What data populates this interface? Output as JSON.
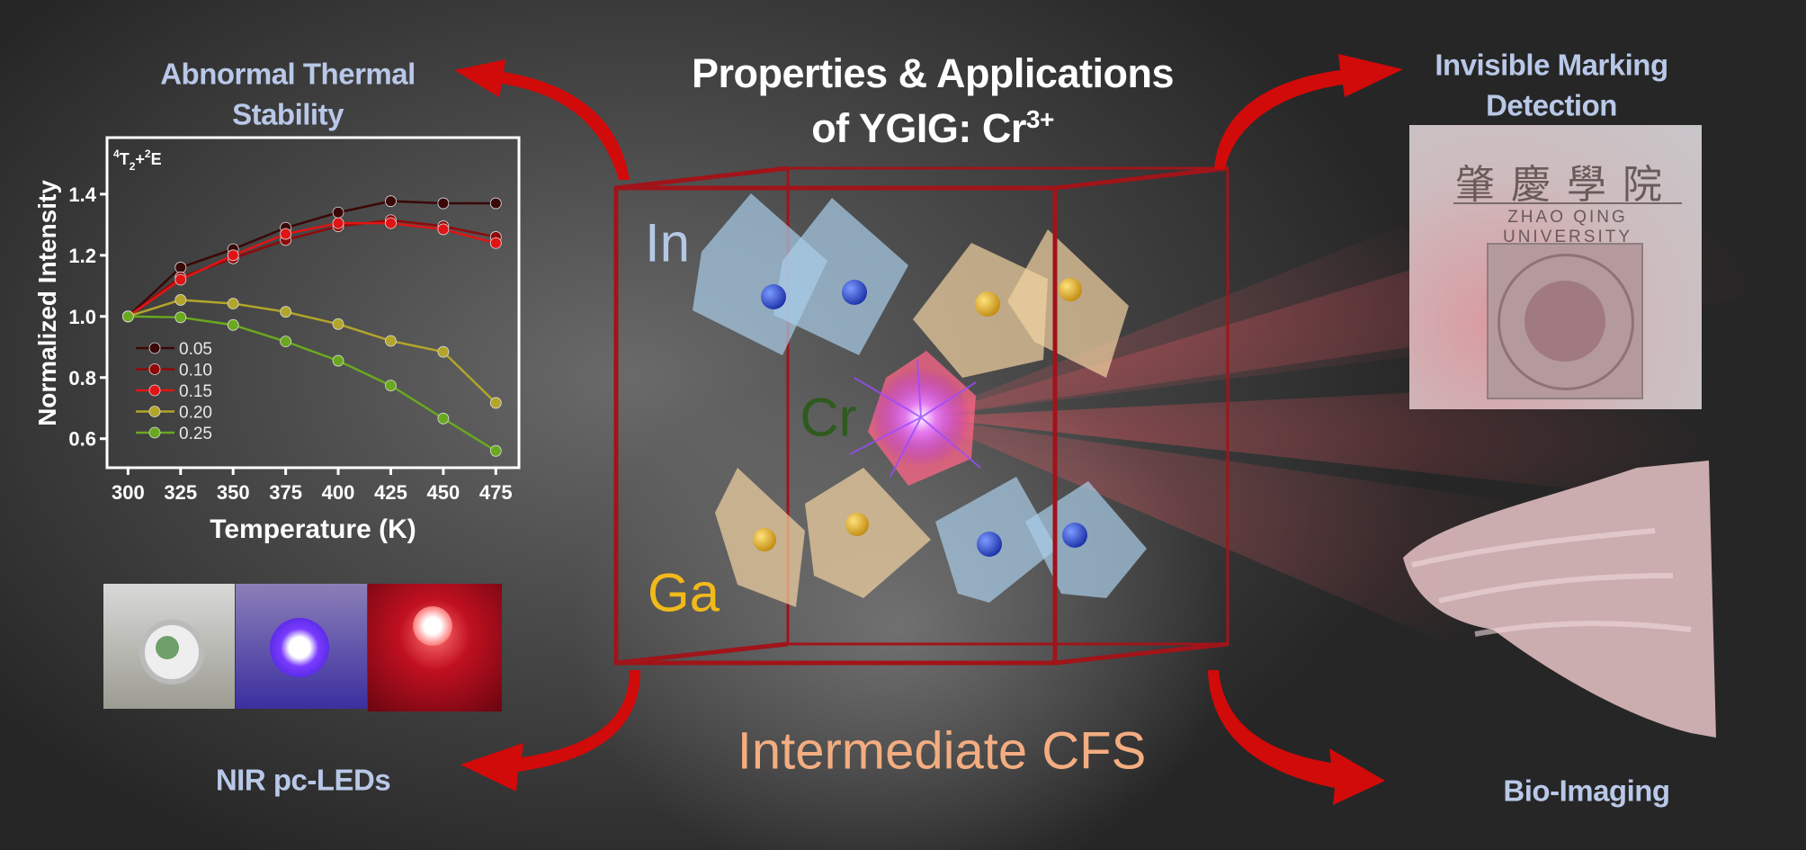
{
  "title": {
    "line1": "Properties & Applications",
    "line2_prefix": "of  YGIG: Cr",
    "line2_sup": "3+"
  },
  "labels": {
    "top_left": [
      "Abnormal Thermal",
      "Stability"
    ],
    "top_right": [
      "Invisible Marking",
      "Detection"
    ],
    "bottom_left": "NIR pc-LEDs",
    "bottom_right": "Bio-Imaging",
    "center_bottom": "Intermediate CFS"
  },
  "atoms": {
    "in": "In",
    "cr": "Cr",
    "ga": "Ga"
  },
  "marking_image": {
    "chinese_name": "肇慶學院",
    "english_name": "ZHAO QING UNIVERSITY"
  },
  "colors": {
    "arrow": "#d10a0a",
    "label": "#b9c8e8",
    "cfs": "#f3ad80",
    "cube": "#a0141a",
    "in_label": "#b4c8e6",
    "cr_label": "#2e5a1e",
    "ga_label": "#f2b91a"
  },
  "chart_data": {
    "type": "line",
    "annotation": "4T2+2E",
    "xlabel": "Temperature (K)",
    "ylabel": "Normalized Intensity",
    "x": [
      300,
      325,
      350,
      375,
      400,
      425,
      450,
      475
    ],
    "xticks": [
      "300",
      "325",
      "350",
      "375",
      "400",
      "425",
      "450",
      "475"
    ],
    "yticks": [
      "0.6",
      "0.8",
      "1.0",
      "1.2",
      "1.4"
    ],
    "xlim": [
      290,
      486
    ],
    "ylim": [
      0.505,
      1.585
    ],
    "grid": false,
    "legend_position": "left-middle",
    "series": [
      {
        "name": "0.05",
        "color": "#3a0808",
        "values": [
          1.0,
          1.16,
          1.22,
          1.29,
          1.34,
          1.377,
          1.37,
          1.37
        ]
      },
      {
        "name": "0.10",
        "color": "#8e0a0a",
        "values": [
          1.0,
          1.128,
          1.19,
          1.25,
          1.295,
          1.315,
          1.295,
          1.26
        ]
      },
      {
        "name": "0.15",
        "color": "#e01414",
        "values": [
          1.0,
          1.12,
          1.2,
          1.27,
          1.305,
          1.305,
          1.285,
          1.24
        ]
      },
      {
        "name": "0.20",
        "color": "#b3a52a",
        "values": [
          1.0,
          1.054,
          1.042,
          1.015,
          0.975,
          0.92,
          0.884,
          0.717
        ]
      },
      {
        "name": "0.25",
        "color": "#6aa820",
        "values": [
          1.0,
          0.997,
          0.972,
          0.918,
          0.855,
          0.774,
          0.666,
          0.56
        ]
      }
    ]
  }
}
